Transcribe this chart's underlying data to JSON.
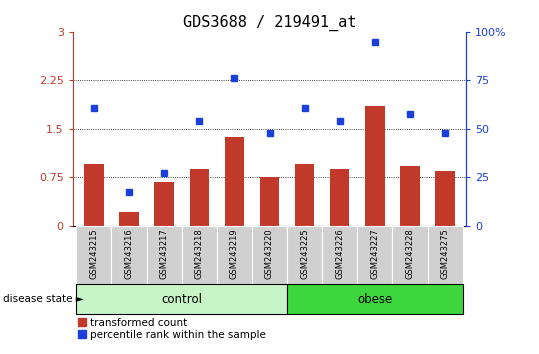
{
  "title": "GDS3688 / 219491_at",
  "samples": [
    "GSM243215",
    "GSM243216",
    "GSM243217",
    "GSM243218",
    "GSM243219",
    "GSM243220",
    "GSM243225",
    "GSM243226",
    "GSM243227",
    "GSM243228",
    "GSM243275"
  ],
  "transformed_count": [
    0.95,
    0.22,
    0.68,
    0.88,
    1.38,
    0.75,
    0.95,
    0.88,
    1.85,
    0.93,
    0.85
  ],
  "percentile_rank_scaled": [
    1.82,
    0.52,
    0.82,
    1.62,
    2.28,
    1.43,
    1.82,
    1.62,
    2.85,
    1.73,
    1.43
  ],
  "bar_color": "#c0392b",
  "dot_color": "#1a3fdb",
  "left_ylim": [
    0,
    3
  ],
  "left_yticks": [
    0,
    0.75,
    1.5,
    2.25,
    3
  ],
  "left_yticklabels": [
    "0",
    "0.75",
    "1.5",
    "2.25",
    "3"
  ],
  "right_ytick_positions": [
    0,
    0.75,
    1.5,
    2.25,
    3
  ],
  "right_yticklabels": [
    "0",
    "25",
    "50",
    "75",
    "100%"
  ],
  "groups": [
    {
      "label": "control",
      "start": 0,
      "end": 5,
      "color": "#c8f5c8"
    },
    {
      "label": "obese",
      "start": 6,
      "end": 10,
      "color": "#3dd63d"
    }
  ],
  "disease_state_label": "disease state",
  "legend_items": [
    {
      "label": "transformed count",
      "color": "#c0392b"
    },
    {
      "label": "percentile rank within the sample",
      "color": "#1a3fdb"
    }
  ],
  "background_color": "#ffffff",
  "tick_area_color": "#d0d0d0",
  "title_fontsize": 11,
  "axis_fontsize": 8,
  "left_tick_color": "#c0392b",
  "right_tick_color": "#1a3fdb"
}
